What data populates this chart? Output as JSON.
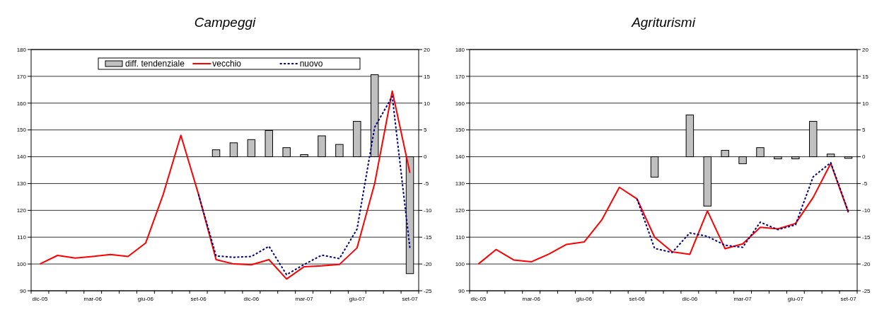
{
  "chart_data": [
    {
      "type": "line",
      "title": "Campeggi",
      "categories": [
        "dic-05",
        null,
        null,
        "mar-06",
        null,
        null,
        "giu-06",
        null,
        null,
        "set-06",
        null,
        null,
        "dic-06",
        null,
        null,
        "mar-07",
        null,
        null,
        "giu-07",
        null,
        null,
        "set-07"
      ],
      "series": [
        {
          "name": "diff. tendenziale",
          "type": "bar",
          "axis": "y2",
          "color": "#c0c0c0",
          "values": [
            null,
            null,
            null,
            null,
            null,
            null,
            null,
            null,
            null,
            null,
            1.3,
            2.6,
            3.2,
            4.9,
            1.7,
            0.4,
            3.9,
            2.3,
            6.6,
            15.3,
            null,
            -21.8
          ]
        },
        {
          "name": "vecchio",
          "color": "#ff0000",
          "line_style": "solid",
          "values": [
            100,
            103.2,
            102.2,
            102.8,
            103.5,
            102.8,
            107.8,
            126,
            148,
            126,
            101.6,
            100,
            99.7,
            101.6,
            94.4,
            99,
            99.3,
            99.8,
            106,
            130,
            164.5,
            134
          ]
        },
        {
          "name": "nuovo",
          "color": "#000080",
          "line_style": "dashed",
          "values": [
            null,
            null,
            null,
            null,
            null,
            null,
            null,
            null,
            null,
            126,
            103,
            102.5,
            102.8,
            106.6,
            96,
            99.8,
            103.3,
            102,
            113,
            151,
            162.5,
            106
          ]
        }
      ],
      "ylim": [
        90,
        180
      ],
      "yticks": [
        90,
        100,
        110,
        120,
        130,
        140,
        150,
        160,
        170,
        180
      ],
      "y2lim": [
        -25,
        20
      ],
      "y2ticks": [
        -25,
        -20,
        -15,
        -10,
        -5,
        0,
        5,
        10,
        15,
        20
      ],
      "grid": "y",
      "legend": "top",
      "marker": "none"
    },
    {
      "type": "line",
      "title": "Agriturismi",
      "categories": [
        "dic-05",
        null,
        null,
        "mar-06",
        null,
        null,
        "giu-06",
        null,
        null,
        "set-06",
        null,
        null,
        "dic-06",
        null,
        null,
        "mar-07",
        null,
        null,
        "giu-07",
        null,
        null,
        "set-07"
      ],
      "series": [
        {
          "type": "bar",
          "axis": "y2",
          "color": "#c0c0c0",
          "values": [
            null,
            null,
            null,
            null,
            null,
            null,
            null,
            null,
            null,
            null,
            -3.8,
            null,
            7.8,
            -9.2,
            1.2,
            -1.3,
            1.7,
            -0.4,
            -0.4,
            6.6,
            0.5,
            -0.3
          ]
        },
        {
          "color": "#ff0000",
          "line_style": "solid",
          "values": [
            100,
            105.4,
            101.5,
            100.8,
            103.7,
            107.3,
            108.2,
            116.4,
            128.6,
            124.3,
            110,
            104.5,
            103.6,
            119.8,
            105.7,
            107.5,
            113.7,
            113.1,
            115.1,
            124.8,
            137.5,
            119.2
          ]
        },
        {
          "color": "#000080",
          "line_style": "dashed",
          "values": [
            null,
            null,
            null,
            null,
            null,
            null,
            null,
            null,
            null,
            124.3,
            105.8,
            104.3,
            111.6,
            110.3,
            107,
            106.2,
            115.6,
            112.8,
            114.6,
            132.5,
            137.8,
            119.5
          ]
        }
      ],
      "ylim": [
        90,
        180
      ],
      "yticks": [
        90,
        100,
        110,
        120,
        130,
        140,
        150,
        160,
        170,
        180
      ],
      "y2lim": [
        -25,
        20
      ],
      "y2ticks": [
        -25,
        -20,
        -15,
        -10,
        -5,
        0,
        5,
        10,
        15,
        20
      ],
      "grid": "y",
      "legend": false,
      "marker": "none"
    }
  ]
}
